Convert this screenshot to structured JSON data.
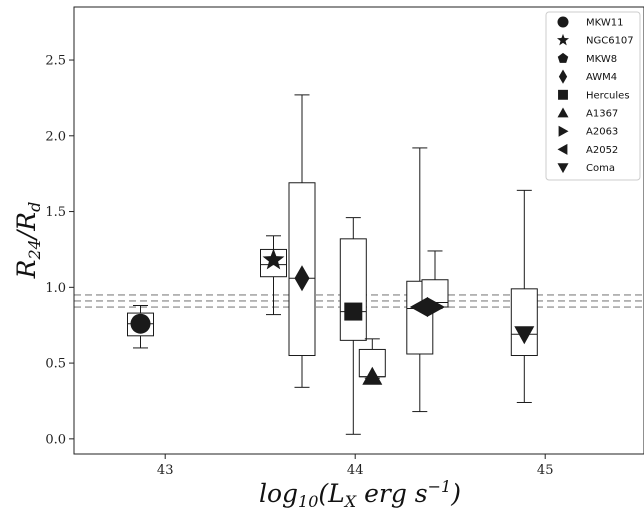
{
  "chart_data": {
    "type": "boxplot",
    "xlabel": "log10(LX erg s−1)",
    "ylabel": "R24/Rd",
    "xlim": [
      42.52,
      45.52
    ],
    "ylim": [
      -0.1,
      2.85
    ],
    "xticks": [
      43,
      44,
      45
    ],
    "xtick_labels": [
      "43",
      "44",
      "45"
    ],
    "yticks": [
      0.0,
      0.5,
      1.0,
      1.5,
      2.0,
      2.5
    ],
    "ytick_labels": [
      "0.0",
      "0.5",
      "1.0",
      "1.5",
      "2.0",
      "2.5"
    ],
    "grid": false,
    "legend_position": "top-right",
    "reference_lines": [
      0.87,
      0.91,
      0.95
    ],
    "colors": {
      "marker": "#1a1a1a",
      "box": "#1a1a1a",
      "reference_line": "#999999"
    },
    "boxes": [
      {
        "x": 42.87,
        "whislo": 0.6,
        "q1": 0.68,
        "med": 0.76,
        "q3": 0.83,
        "whishi": 0.88
      },
      {
        "x": 43.57,
        "whislo": 0.82,
        "q1": 1.07,
        "med": 1.15,
        "q3": 1.25,
        "whishi": 1.34
      },
      {
        "x": 43.72,
        "whislo": 0.34,
        "q1": 0.55,
        "med": 1.06,
        "q3": 1.69,
        "whishi": 2.27
      },
      {
        "x": 43.99,
        "whislo": 0.03,
        "q1": 0.65,
        "med": 0.84,
        "q3": 1.32,
        "whishi": 1.46
      },
      {
        "x": 44.09,
        "whislo": 0.4,
        "q1": 0.41,
        "med": 0.41,
        "q3": 0.59,
        "whishi": 0.66
      },
      {
        "x": 44.34,
        "whislo": 0.18,
        "q1": 0.56,
        "med": 0.86,
        "q3": 1.04,
        "whishi": 1.92
      },
      {
        "x": 44.42,
        "whislo": 0.86,
        "q1": 0.87,
        "med": 0.9,
        "q3": 1.05,
        "whishi": 1.24
      },
      {
        "x": 44.89,
        "whislo": 0.24,
        "q1": 0.55,
        "med": 0.69,
        "q3": 0.99,
        "whishi": 1.64
      }
    ],
    "series": [
      {
        "name": "MKW11",
        "marker": "circle",
        "points": [
          {
            "x": 42.87,
            "y": 0.76
          }
        ]
      },
      {
        "name": "NGC6107",
        "marker": "star",
        "points": [
          {
            "x": 43.57,
            "y": 1.18
          }
        ]
      },
      {
        "name": "MKW8",
        "marker": "pentagon",
        "points": []
      },
      {
        "name": "AWM4",
        "marker": "diamond",
        "points": [
          {
            "x": 43.72,
            "y": 1.06
          }
        ]
      },
      {
        "name": "Hercules",
        "marker": "square",
        "points": [
          {
            "x": 43.99,
            "y": 0.84
          }
        ]
      },
      {
        "name": "A1367",
        "marker": "triangle-up",
        "points": [
          {
            "x": 44.09,
            "y": 0.41
          }
        ]
      },
      {
        "name": "A2063",
        "marker": "triangle-right",
        "points": [
          {
            "x": 44.42,
            "y": 0.87
          }
        ]
      },
      {
        "name": "A2052",
        "marker": "triangle-left",
        "points": [
          {
            "x": 44.34,
            "y": 0.87
          }
        ]
      },
      {
        "name": "Coma",
        "marker": "triangle-down",
        "points": [
          {
            "x": 44.89,
            "y": 0.69
          }
        ]
      }
    ]
  }
}
